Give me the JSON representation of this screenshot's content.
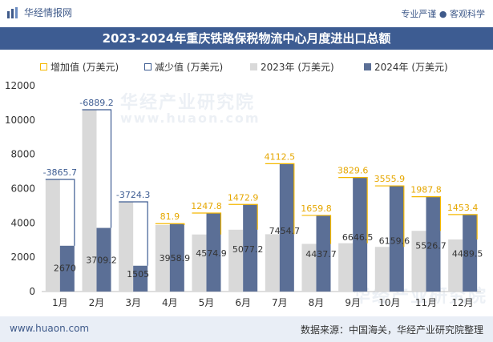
{
  "header": {
    "brand": "华经情报网",
    "slogan": "专业严谨 ● 客观科学"
  },
  "title": "2023-2024年重庆铁路保税物流中心月度进出口总额",
  "legend": [
    {
      "label": "增加值 (万美元)",
      "kind": "increase"
    },
    {
      "label": "减少值 (万美元)",
      "kind": "decrease"
    },
    {
      "label": "2023年 (万美元)",
      "kind": "y2023"
    },
    {
      "label": "2024年 (万美元)",
      "kind": "y2024"
    }
  ],
  "colors": {
    "y2023": "#d9d9d9",
    "y2024": "#5b6f96",
    "increase": "#f5b800",
    "decrease": "#3d5c92",
    "title_bar": "#3d5c92",
    "increase_label": "#e6a700",
    "decrease_label": "#3d5c92"
  },
  "chart_data": {
    "type": "bar",
    "categories": [
      "1月",
      "2月",
      "3月",
      "4月",
      "5月",
      "6月",
      "7月",
      "8月",
      "9月",
      "10月",
      "11月",
      "12月"
    ],
    "series": [
      {
        "name": "2023年 (万美元)",
        "values": [
          6535.7,
          10598.4,
          5229.3,
          3877.0,
          3327.1,
          3604.3,
          3342.2,
          2777.9,
          2817.0,
          2603.7,
          3538.9,
          3036.1
        ]
      },
      {
        "name": "2024年 (万美元)",
        "values": [
          2670,
          3709.2,
          1505,
          3958.9,
          4574.9,
          5077.2,
          7454.7,
          4437.7,
          6646.5,
          6159.6,
          5526.7,
          4489.5
        ]
      }
    ],
    "change": [
      -3865.7,
      -6889.2,
      -3724.3,
      81.9,
      1247.8,
      1472.9,
      4112.5,
      1659.8,
      3829.6,
      3555.9,
      1987.8,
      1453.4
    ],
    "change_labels": [
      "-3865.7",
      "-6889.2",
      "-3724.3",
      "81.9",
      "1247.8",
      "1472.9",
      "4112.5",
      "1659.8",
      "3829.6",
      "3555.9",
      "1987.8",
      "1453.4"
    ],
    "value_labels_2024": [
      "2670",
      "3709.2",
      "1505",
      "3958.9",
      "4574.9",
      "5077.2",
      "7454.7",
      "4437.7",
      "6646.5",
      "6159.6",
      "5526.7",
      "4489.5"
    ],
    "yticks": [
      0,
      2000,
      4000,
      6000,
      8000,
      10000,
      12000
    ],
    "ylim": [
      0,
      12000
    ],
    "xlabel": "",
    "ylabel": "",
    "grid": false,
    "legend_position": "top"
  },
  "watermarks": [
    "华经产业研究院",
    "www.huaon.com",
    "华经产业研究院"
  ],
  "footer": {
    "site": "www.huaon.com",
    "source": "数据来源：中国海关，华经产业研究院整理"
  }
}
